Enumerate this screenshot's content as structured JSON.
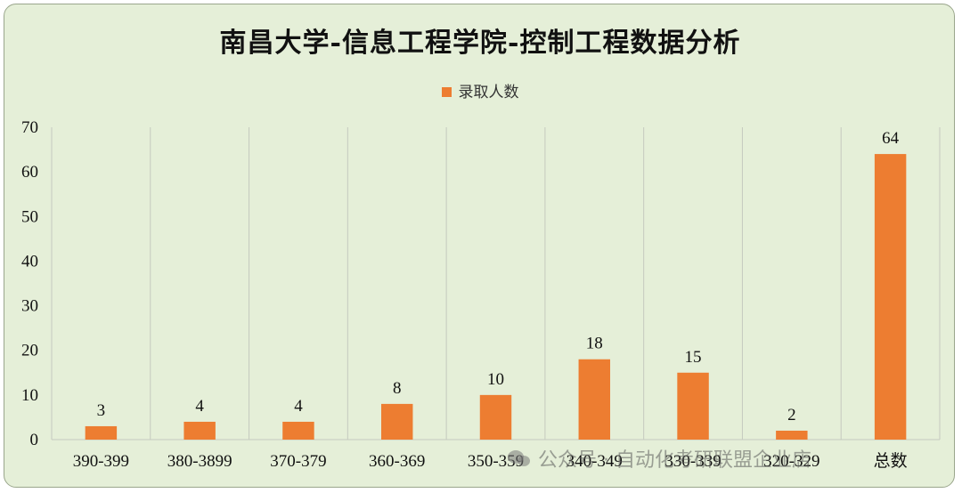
{
  "chart_data": {
    "type": "bar",
    "title": "南昌大学-信息工程学院-控制工程数据分析",
    "categories": [
      "390-399",
      "380-3899",
      "370-379",
      "360-369",
      "350-359",
      "340-349",
      "330-339",
      "320-329",
      "总数"
    ],
    "series": [
      {
        "name": "录取人数",
        "values": [
          3,
          4,
          4,
          8,
          10,
          18,
          15,
          2,
          64
        ],
        "color": "#ed7d31"
      }
    ],
    "ylim": [
      0,
      70
    ],
    "yticks": [
      0,
      10,
      20,
      30,
      40,
      50,
      60,
      70
    ],
    "xlabel": "",
    "ylabel": "",
    "grid": "vertical category separators",
    "legend_position": "top"
  },
  "watermark": {
    "text": "公众号 · 自动化考研联盟企业店",
    "icon": "wechat-icon"
  }
}
